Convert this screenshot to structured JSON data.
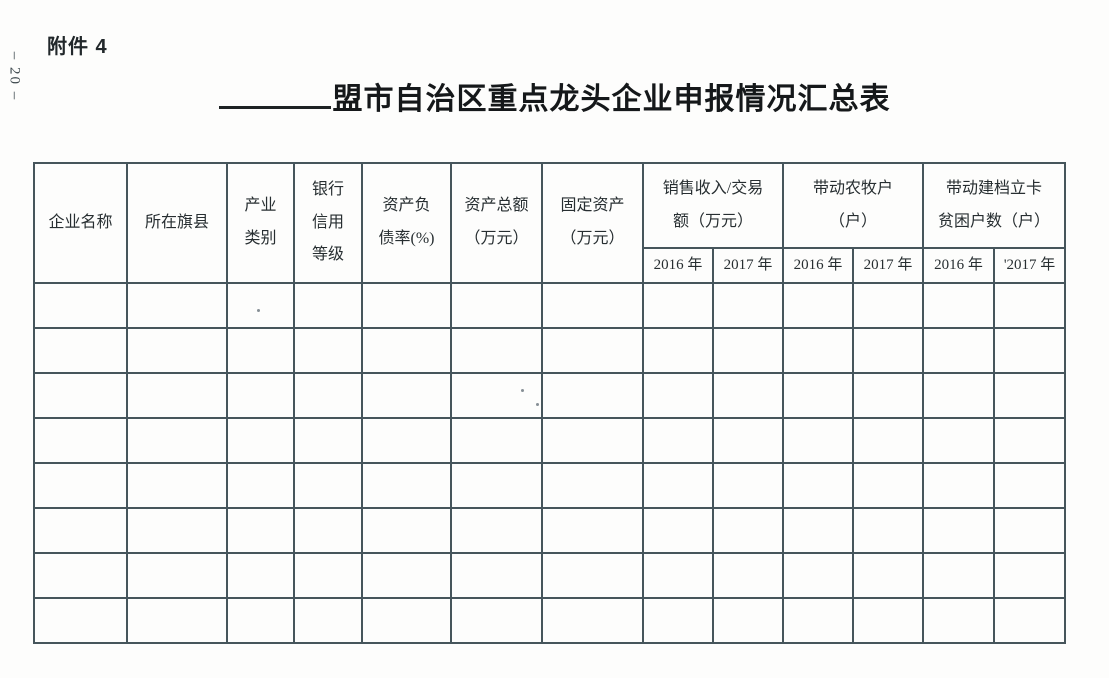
{
  "page": {
    "attachment_label": "附件 4",
    "page_number": "– 20 –"
  },
  "title": {
    "text": "盟市自治区重点龙头企业申报情况汇总表"
  },
  "table": {
    "header": {
      "enterprise_name": "企业名称",
      "county": "所在旗县",
      "industry_category": "产业\n类别",
      "bank_credit_rating": "银行\n信用\n等级",
      "debt_ratio": "资产负\n债率(%)",
      "total_assets": "资产总额\n（万元）",
      "fixed_assets": "固定资产\n（万元）",
      "sales_group": "销售收入/交易\n额（万元）",
      "farmers_group": "带动农牧户\n（户）",
      "poor_group": "带动建档立卡\n贫困户数（户）",
      "sub_years": [
        "2016 年",
        "2017 年",
        "2016 年",
        "2017 年",
        "2016 年",
        "'2017 年"
      ]
    },
    "row_count": 8,
    "column_count": 13
  }
}
